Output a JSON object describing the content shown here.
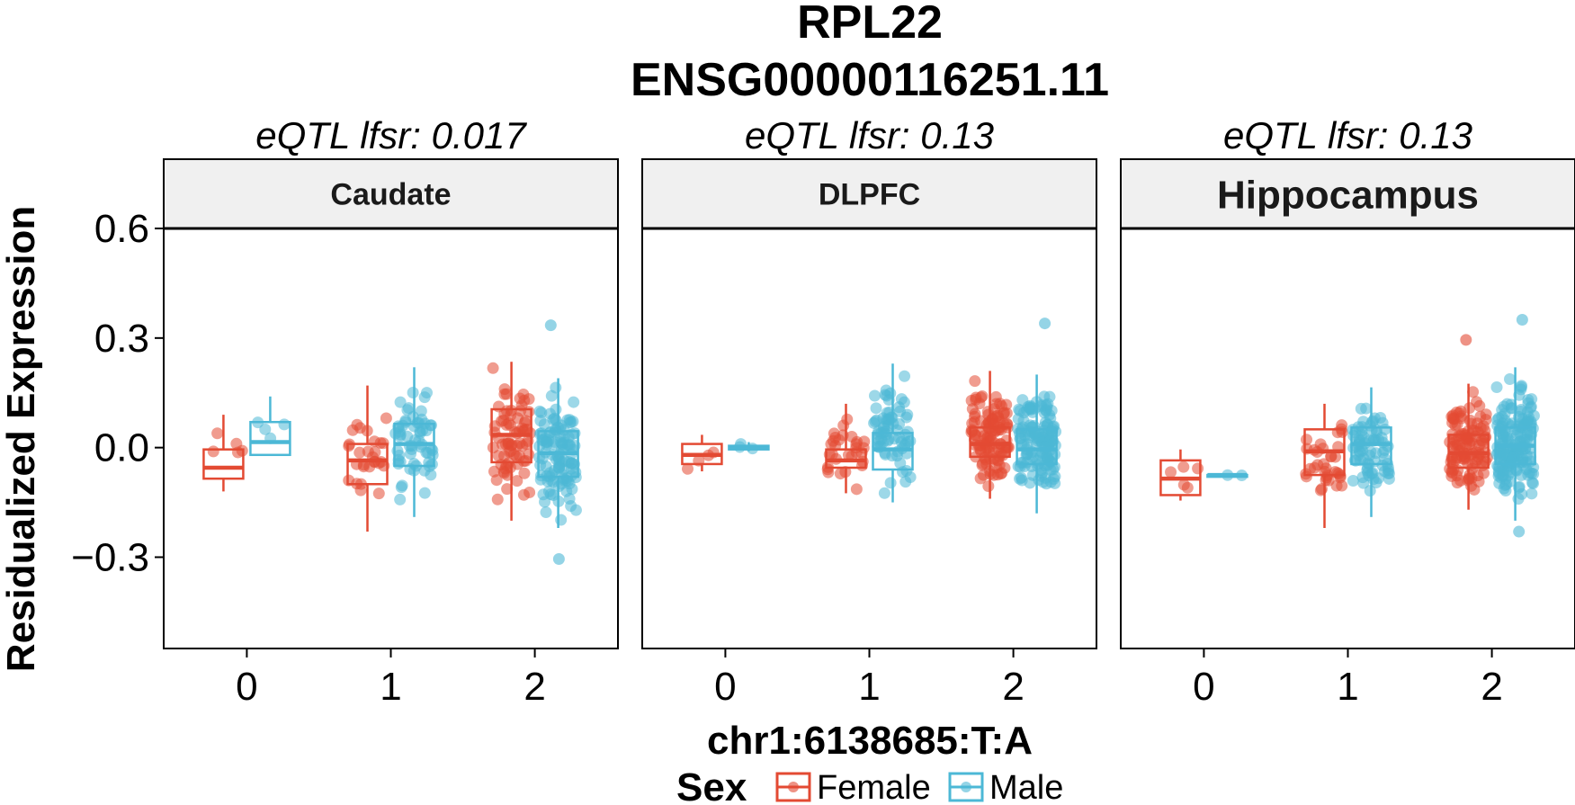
{
  "title_line1": "RPL22",
  "title_line2": "ENSG00000116251.11",
  "xlabel": "chr1:6138685:T:A",
  "ylabel": "Residualized Expression",
  "legend": {
    "title": "Sex",
    "items": [
      "Female",
      "Male"
    ]
  },
  "colors": {
    "Female": "#e34a33",
    "Male": "#4cb8d6",
    "strip_bg": "#f0f0f0"
  },
  "chart_data": {
    "type": "boxplot",
    "ylim": [
      -0.55,
      0.6
    ],
    "yticks": [
      0.6,
      0.3,
      0.0,
      -0.3
    ],
    "ytick_labels": [
      "0.6",
      "0.3",
      "0.0",
      "−0.3"
    ],
    "categories": [
      "0",
      "1",
      "2"
    ],
    "panels": [
      {
        "subtitle": "eQTL lfsr: 0.017",
        "strip": "Caudate",
        "groups": [
          {
            "genotype": "0",
            "sex": "Female",
            "q1": -0.085,
            "median": -0.055,
            "q3": -0.005,
            "wlo": -0.12,
            "whi": 0.09,
            "n": 5
          },
          {
            "genotype": "0",
            "sex": "Male",
            "q1": -0.02,
            "median": 0.015,
            "q3": 0.07,
            "wlo": -0.02,
            "whi": 0.14,
            "n": 4
          },
          {
            "genotype": "1",
            "sex": "Female",
            "q1": -0.1,
            "median": -0.035,
            "q3": 0.01,
            "wlo": -0.23,
            "whi": 0.17,
            "n": 28
          },
          {
            "genotype": "1",
            "sex": "Male",
            "q1": -0.05,
            "median": 0.01,
            "q3": 0.065,
            "wlo": -0.19,
            "whi": 0.22,
            "n": 60
          },
          {
            "genotype": "2",
            "sex": "Female",
            "q1": -0.04,
            "median": 0.035,
            "q3": 0.105,
            "wlo": -0.2,
            "whi": 0.235,
            "n": 75
          },
          {
            "genotype": "2",
            "sex": "Male",
            "q1": -0.08,
            "median": -0.015,
            "q3": 0.045,
            "wlo": -0.22,
            "whi": 0.19,
            "n": 115
          }
        ],
        "outliers": [
          {
            "genotype": "2",
            "sex": "Male",
            "y": -0.305
          },
          {
            "genotype": "2",
            "sex": "Male",
            "y": 0.335
          }
        ]
      },
      {
        "subtitle": "eQTL lfsr: 0.13",
        "strip": "DLPFC",
        "groups": [
          {
            "genotype": "0",
            "sex": "Female",
            "q1": -0.045,
            "median": -0.02,
            "q3": 0.01,
            "wlo": -0.065,
            "whi": 0.035,
            "n": 4
          },
          {
            "genotype": "0",
            "sex": "Male",
            "q1": -0.005,
            "median": 0.0,
            "q3": 0.005,
            "wlo": -0.01,
            "whi": 0.015,
            "n": 3
          },
          {
            "genotype": "1",
            "sex": "Female",
            "q1": -0.055,
            "median": -0.035,
            "q3": -0.005,
            "wlo": -0.125,
            "whi": 0.12,
            "n": 30
          },
          {
            "genotype": "1",
            "sex": "Male",
            "q1": -0.06,
            "median": -0.005,
            "q3": 0.04,
            "wlo": -0.15,
            "whi": 0.23,
            "n": 70
          },
          {
            "genotype": "2",
            "sex": "Female",
            "q1": -0.025,
            "median": 0.01,
            "q3": 0.055,
            "wlo": -0.14,
            "whi": 0.21,
            "n": 110
          },
          {
            "genotype": "2",
            "sex": "Male",
            "q1": -0.045,
            "median": -0.005,
            "q3": 0.05,
            "wlo": -0.18,
            "whi": 0.2,
            "n": 140
          }
        ],
        "outliers": [
          {
            "genotype": "2",
            "sex": "Male",
            "y": 0.34
          }
        ]
      },
      {
        "subtitle": "eQTL lfsr: 0.13",
        "strip": "Hippocampus",
        "groups": [
          {
            "genotype": "0",
            "sex": "Female",
            "q1": -0.13,
            "median": -0.085,
            "q3": -0.035,
            "wlo": -0.145,
            "whi": -0.005,
            "n": 5
          },
          {
            "genotype": "0",
            "sex": "Male",
            "q1": -0.075,
            "median": -0.075,
            "q3": -0.075,
            "wlo": -0.075,
            "whi": -0.075,
            "n": 2
          },
          {
            "genotype": "1",
            "sex": "Female",
            "q1": -0.075,
            "median": -0.01,
            "q3": 0.05,
            "wlo": -0.22,
            "whi": 0.12,
            "n": 35
          },
          {
            "genotype": "1",
            "sex": "Male",
            "q1": -0.045,
            "median": 0.01,
            "q3": 0.055,
            "wlo": -0.19,
            "whi": 0.165,
            "n": 75
          },
          {
            "genotype": "2",
            "sex": "Female",
            "q1": -0.055,
            "median": -0.015,
            "q3": 0.035,
            "wlo": -0.17,
            "whi": 0.175,
            "n": 110
          },
          {
            "genotype": "2",
            "sex": "Male",
            "q1": -0.045,
            "median": 0.005,
            "q3": 0.055,
            "wlo": -0.2,
            "whi": 0.22,
            "n": 165
          }
        ],
        "outliers": [
          {
            "genotype": "2",
            "sex": "Female",
            "y": 0.295
          },
          {
            "genotype": "2",
            "sex": "Male",
            "y": 0.35
          },
          {
            "genotype": "2",
            "sex": "Male",
            "y": -0.23
          }
        ]
      }
    ]
  }
}
